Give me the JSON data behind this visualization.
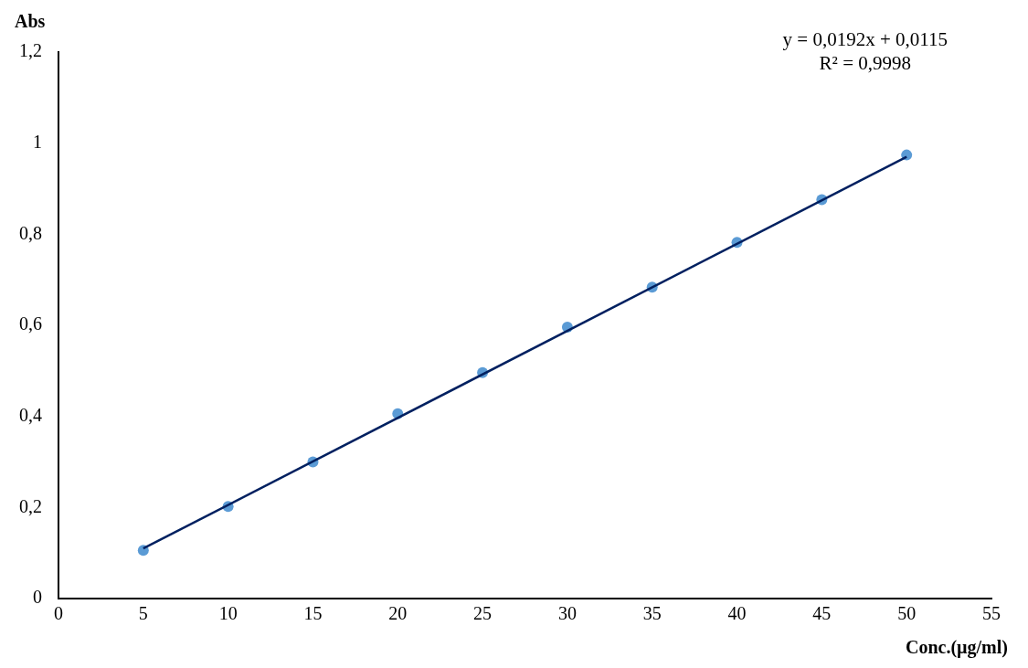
{
  "chart_data": {
    "type": "scatter",
    "xlabel": "Conc.(µg/ml)",
    "ylabel": "Abs",
    "x": [
      5,
      10,
      15,
      20,
      25,
      30,
      35,
      40,
      45,
      50
    ],
    "series": [
      {
        "color": "#5b9bd5",
        "marker": "circle",
        "values": [
          0.106,
          0.202,
          0.3,
          0.406,
          0.496,
          0.596,
          0.684,
          0.782,
          0.876,
          0.974
        ]
      },
      {
        "type": "line",
        "color": "#002060",
        "marker": "none",
        "x": [
          5,
          50
        ],
        "values": [
          0.11,
          0.97
        ]
      }
    ],
    "xlim": [
      0,
      55
    ],
    "xticks": [
      0,
      5,
      10,
      15,
      20,
      25,
      30,
      35,
      40,
      45,
      50,
      55
    ],
    "ylim": [
      0,
      1.2
    ],
    "yticks": [
      0,
      {
        "value": 0.2,
        "label": "0,2"
      },
      {
        "value": 0.4,
        "label": "0,4"
      },
      {
        "value": 0.6,
        "label": "0,6"
      },
      {
        "value": 0.8,
        "label": "0,8"
      },
      1,
      {
        "value": 1.2,
        "label": "1,2"
      }
    ],
    "annotations": [
      "y = 0,0192x  + 0,0115",
      "R² = 0,9998"
    ],
    "grid": false,
    "legend": false,
    "line_style": "solid"
  }
}
